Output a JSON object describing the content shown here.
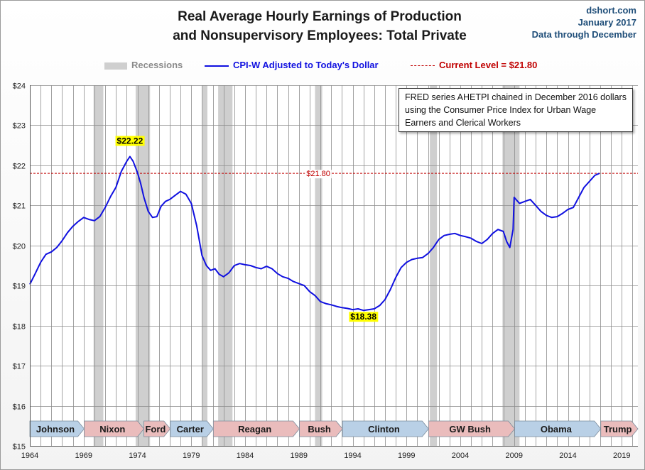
{
  "header": {
    "title_line1": "Real Average Hourly Earnings of Production",
    "title_line2": "and Nonsupervisory Employees: Total Private",
    "source": "dshort.com",
    "date": "January 2017",
    "data_through": "Data through December"
  },
  "legend": {
    "recessions": "Recessions",
    "series": "CPI-W Adjusted to Today's Dollar",
    "current": "Current Level = $21.80"
  },
  "colors": {
    "series": "#1010e0",
    "current_line": "#c00000",
    "recession": "#cfcfcf",
    "president_r": "#eabcbc",
    "president_d": "#b9d0e6",
    "label_highlight": "#ffff00"
  },
  "note": "FRED series AHETPI chained in December 2016 dollars using the Consumer Price Index for Urban Wage Earners and Clerical Workers",
  "chart_data": {
    "type": "line",
    "x_axis": {
      "ticks": [
        1964,
        1969,
        1974,
        1979,
        1984,
        1989,
        1994,
        1999,
        2004,
        2009,
        2014,
        2019
      ],
      "range": [
        1964,
        2020.5
      ]
    },
    "y_axis": {
      "ticks": [
        "$15",
        "$16",
        "$17",
        "$18",
        "$19",
        "$20",
        "$21",
        "$22",
        "$23",
        "$24"
      ],
      "range": [
        15,
        24
      ]
    },
    "grid": true,
    "series": [
      {
        "name": "CPI-W Adjusted to Today's Dollar",
        "x": [
          1964.0,
          1964.5,
          1965.0,
          1965.5,
          1966.0,
          1966.5,
          1967.0,
          1967.5,
          1968.0,
          1968.5,
          1969.0,
          1969.5,
          1970.0,
          1970.5,
          1971.0,
          1971.5,
          1972.0,
          1972.5,
          1973.0,
          1973.3,
          1973.6,
          1974.0,
          1974.3,
          1974.6,
          1975.0,
          1975.4,
          1975.8,
          1976.2,
          1976.6,
          1977.0,
          1977.5,
          1978.0,
          1978.5,
          1979.0,
          1979.5,
          1980.0,
          1980.4,
          1980.8,
          1981.2,
          1981.6,
          1982.0,
          1982.5,
          1983.0,
          1983.5,
          1984.0,
          1984.5,
          1985.0,
          1985.5,
          1986.0,
          1986.5,
          1987.0,
          1987.5,
          1988.0,
          1988.5,
          1989.0,
          1989.5,
          1990.0,
          1990.5,
          1991.0,
          1991.5,
          1992.0,
          1992.5,
          1993.0,
          1993.5,
          1994.0,
          1994.5,
          1995.0,
          1995.5,
          1996.0,
          1996.5,
          1997.0,
          1997.5,
          1998.0,
          1998.5,
          1999.0,
          1999.5,
          2000.0,
          2000.5,
          2001.0,
          2001.5,
          2002.0,
          2002.5,
          2003.0,
          2003.5,
          2004.0,
          2004.5,
          2005.0,
          2005.5,
          2006.0,
          2006.5,
          2007.0,
          2007.5,
          2008.0,
          2008.3,
          2008.6,
          2008.9,
          2009.0,
          2009.5,
          2010.0,
          2010.5,
          2011.0,
          2011.5,
          2012.0,
          2012.5,
          2013.0,
          2013.5,
          2014.0,
          2014.5,
          2015.0,
          2015.5,
          2016.0,
          2016.5,
          2016.92
        ],
        "values": [
          19.03,
          19.3,
          19.58,
          19.78,
          19.84,
          19.95,
          20.12,
          20.32,
          20.48,
          20.6,
          20.7,
          20.65,
          20.62,
          20.72,
          20.95,
          21.22,
          21.45,
          21.85,
          22.1,
          22.22,
          22.1,
          21.82,
          21.55,
          21.2,
          20.85,
          20.7,
          20.72,
          20.98,
          21.1,
          21.15,
          21.25,
          21.35,
          21.28,
          21.05,
          20.5,
          19.75,
          19.5,
          19.38,
          19.42,
          19.28,
          19.22,
          19.32,
          19.5,
          19.55,
          19.52,
          19.5,
          19.45,
          19.42,
          19.48,
          19.42,
          19.3,
          19.22,
          19.18,
          19.1,
          19.05,
          19.0,
          18.85,
          18.75,
          18.6,
          18.55,
          18.52,
          18.48,
          18.45,
          18.43,
          18.4,
          18.42,
          18.38,
          18.4,
          18.42,
          18.5,
          18.65,
          18.9,
          19.2,
          19.45,
          19.58,
          19.65,
          19.68,
          19.7,
          19.8,
          19.95,
          20.15,
          20.25,
          20.28,
          20.3,
          20.25,
          20.22,
          20.18,
          20.1,
          20.05,
          20.15,
          20.3,
          20.4,
          20.35,
          20.1,
          19.95,
          20.4,
          21.2,
          21.05,
          21.1,
          21.15,
          21.0,
          20.85,
          20.75,
          20.7,
          20.72,
          20.8,
          20.9,
          20.95,
          21.2,
          21.45,
          21.6,
          21.75,
          21.8
        ]
      }
    ],
    "current_level": {
      "value": 21.8,
      "label": "$21.80"
    },
    "annotations": [
      {
        "text": "$22.22",
        "x": 1973.3,
        "y": 22.22
      },
      {
        "text": "$18.38",
        "x": 1995.0,
        "y": 18.38
      }
    ],
    "recessions": [
      [
        1969.92,
        1970.83
      ],
      [
        1973.83,
        1975.17
      ],
      [
        1980.0,
        1980.5
      ],
      [
        1981.5,
        1982.83
      ],
      [
        1990.5,
        1991.17
      ],
      [
        2001.17,
        2001.83
      ],
      [
        2007.92,
        2009.5
      ]
    ],
    "presidents": [
      {
        "name": "Johnson",
        "start": 1964.0,
        "end": 1969.05,
        "party": "D"
      },
      {
        "name": "Nixon",
        "start": 1969.05,
        "end": 1974.6,
        "party": "R"
      },
      {
        "name": "Ford",
        "start": 1974.6,
        "end": 1977.05,
        "party": "R"
      },
      {
        "name": "Carter",
        "start": 1977.05,
        "end": 1981.05,
        "party": "D"
      },
      {
        "name": "Reagan",
        "start": 1981.05,
        "end": 1989.05,
        "party": "R"
      },
      {
        "name": "Bush",
        "start": 1989.05,
        "end": 1993.05,
        "party": "R"
      },
      {
        "name": "Clinton",
        "start": 1993.05,
        "end": 2001.05,
        "party": "D"
      },
      {
        "name": "GW Bush",
        "start": 2001.05,
        "end": 2009.05,
        "party": "R"
      },
      {
        "name": "Obama",
        "start": 2009.05,
        "end": 2017.05,
        "party": "D"
      },
      {
        "name": "Trump",
        "start": 2017.05,
        "end": 2020.5,
        "party": "R"
      }
    ]
  }
}
